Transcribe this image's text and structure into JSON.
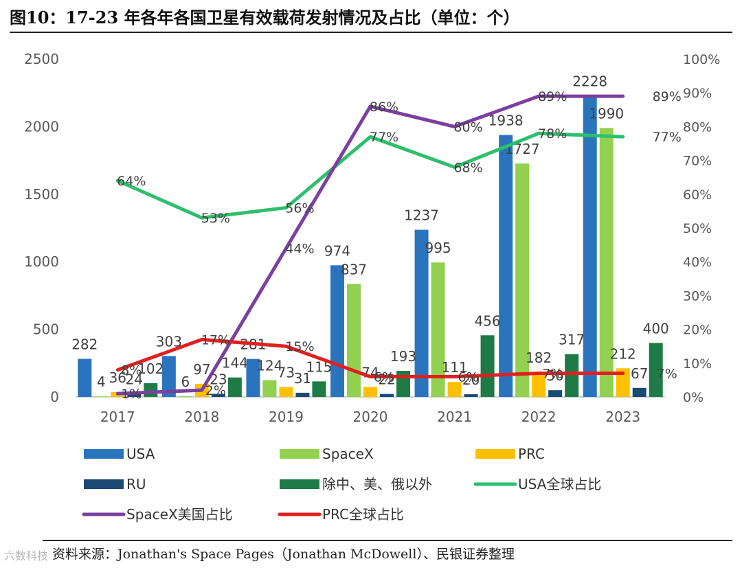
{
  "title": "图10：17-23 年各年各国卫星有效载荷发射情况及占比（单位：个）",
  "source": "资料来源：Jonathan's Space Pages（Jonathan McDowell）、民银证券整理",
  "watermark": "六数科技",
  "chart_data": {
    "type": "bar",
    "categories": [
      "2017",
      "2018",
      "2019",
      "2020",
      "2021",
      "2022",
      "2023"
    ],
    "ylim": [
      0,
      2500
    ],
    "y_ticks": [
      "0",
      "500",
      "1000",
      "1500",
      "2000",
      "2500"
    ],
    "y2lim": [
      0,
      100
    ],
    "y2_ticks": [
      "0%",
      "10%",
      "20%",
      "30%",
      "40%",
      "50%",
      "60%",
      "70%",
      "80%",
      "90%",
      "100%"
    ],
    "grid": false,
    "legend_position": "bottom",
    "series": [
      {
        "name": "USA",
        "type": "bar",
        "color": "#2a74bd",
        "values": [
          282,
          303,
          281,
          974,
          1237,
          1938,
          2228
        ]
      },
      {
        "name": "SpaceX",
        "type": "bar",
        "color": "#92d050",
        "values": [
          4,
          6,
          124,
          837,
          995,
          1727,
          1990
        ]
      },
      {
        "name": "PRC",
        "type": "bar",
        "color": "#ffc000",
        "values": [
          36,
          97,
          73,
          74,
          111,
          182,
          212
        ]
      },
      {
        "name": "RU",
        "type": "bar",
        "color": "#1a4a73",
        "values": [
          24,
          23,
          31,
          22,
          20,
          50,
          67
        ]
      },
      {
        "name": "除中、美、俄以外",
        "type": "bar",
        "color": "#1e7b45",
        "values": [
          102,
          144,
          115,
          193,
          456,
          317,
          400
        ]
      },
      {
        "name": "USA全球占比",
        "type": "line",
        "axis": "right",
        "color": "#2dbf6c",
        "values": [
          64,
          53,
          56,
          77,
          68,
          78,
          77
        ]
      },
      {
        "name": "SpaceX美国占比",
        "type": "line",
        "axis": "right",
        "color": "#7b3fa0",
        "values": [
          1,
          2,
          44,
          86,
          80,
          89,
          89
        ]
      },
      {
        "name": "PRC全球占比",
        "type": "line",
        "axis": "right",
        "color": "#e02020",
        "values": [
          8,
          17,
          15,
          6,
          6,
          7,
          7
        ]
      }
    ]
  }
}
